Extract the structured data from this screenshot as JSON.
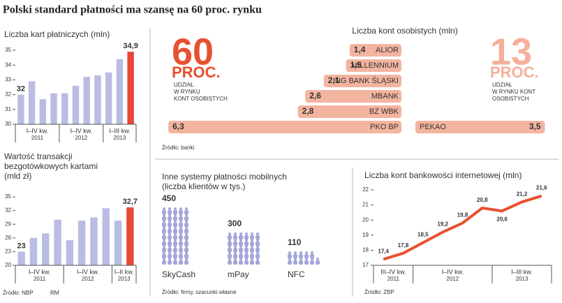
{
  "title": "Polski standard płatności ma szansę na 60 proc. rynku",
  "credit": "RM",
  "chart_data": [
    {
      "type": "bar",
      "title": [
        "Liczba kart płatniczych (mln)"
      ],
      "values": [
        32,
        32.9,
        31.7,
        32.1,
        32.1,
        32.6,
        33.2,
        33.3,
        33.5,
        34.4,
        34.9
      ],
      "value_labels": [
        "32",
        null,
        null,
        null,
        null,
        null,
        null,
        null,
        null,
        null,
        "34,9"
      ],
      "colors": [
        "#b9bde3",
        "#b9bde3",
        "#b9bde3",
        "#b9bde3",
        "#b9bde3",
        "#b9bde3",
        "#b9bde3",
        "#b9bde3",
        "#b9bde3",
        "#b9bde3",
        "#e8473a"
      ],
      "ylim": [
        30,
        35
      ],
      "yticks": [
        30,
        31,
        32,
        33,
        34,
        35
      ],
      "groups": [
        {
          "label": "I–IV kw.",
          "year": "2011"
        },
        {
          "label": "I–IV kw.",
          "year": "2012"
        },
        {
          "label": "I–III kw.",
          "year": "2013"
        }
      ],
      "source": "Źródło: NBP"
    },
    {
      "type": "bar",
      "title": [
        "Wartość transakcji",
        "bezgotówkowych kartami",
        "(mld zł)"
      ],
      "values": [
        23,
        26,
        27,
        30,
        25.5,
        29.8,
        30.5,
        32.5,
        29.8,
        32.7
      ],
      "value_labels": [
        "23",
        null,
        null,
        null,
        null,
        null,
        null,
        null,
        null,
        "32,7"
      ],
      "colors": [
        "#b9bde3",
        "#b9bde3",
        "#b9bde3",
        "#b9bde3",
        "#b9bde3",
        "#b9bde3",
        "#b9bde3",
        "#b9bde3",
        "#b9bde3",
        "#e8473a"
      ],
      "ylim": [
        20,
        35
      ],
      "yticks": [
        20,
        23,
        26,
        29,
        32,
        35
      ],
      "groups": [
        {
          "label": "I–IV kw.",
          "year": "2011"
        },
        {
          "label": "I–IV kw.",
          "year": "2012"
        },
        {
          "label": "I–II kw.",
          "year": "2013"
        }
      ]
    },
    {
      "type": "hbar",
      "title": [
        "Liczba kont osobistych (mln)"
      ],
      "categories": [
        "ALIOR",
        "MILLENNIUM",
        "ING BANK ŚLĄSKI",
        "MBANK",
        "BZ WBK",
        "PKO BP",
        "PEKAO"
      ],
      "values": [
        1.4,
        1.5,
        2.1,
        2.6,
        2.8,
        6.3,
        3.5
      ],
      "value_labels": [
        "1,4",
        "1,5",
        "2,1",
        "2,6",
        "2,8",
        "6,3",
        "3,5"
      ],
      "color": "#f3b4a0",
      "annotations": {
        "left": {
          "number": "60",
          "unit": "PROC.",
          "caption": [
            "UDZIAŁ",
            "W RYNKU",
            "KONT OSOBISTYCH"
          ]
        },
        "right": {
          "number": "13",
          "unit": "PROC.",
          "caption": [
            "UDZIAŁ",
            "W RYNKU KONT",
            "OSOBISTYCH"
          ]
        }
      },
      "source": "Źródło: banki"
    },
    {
      "type": "pictogram",
      "title": [
        "Inne systemy płatności mobilnych",
        "(liczba klientów w tys.)"
      ],
      "categories": [
        "SkyCash",
        "mPay",
        "NFC"
      ],
      "values": [
        450,
        300,
        110
      ],
      "color": "#a3a6d8",
      "source": "Źródło: firmy, szacunki własne"
    },
    {
      "type": "line",
      "title": [
        "Liczba kont bankowości internetowej (mln)"
      ],
      "values": [
        17.4,
        17.8,
        18.5,
        19.2,
        19.8,
        20.8,
        20.6,
        21.2,
        21.6
      ],
      "value_labels": [
        "17,4",
        "17,8",
        "18,5",
        "19,2",
        "19,8",
        "20,8",
        "20,6",
        "21,2",
        "21,6"
      ],
      "color": "#e8502f",
      "ylim": [
        17,
        22
      ],
      "yticks": [
        17,
        18,
        19,
        20,
        21,
        22
      ],
      "groups": [
        {
          "label": "III–IV kw.",
          "year": "2011"
        },
        {
          "label": "I–IV kw.",
          "year": "2012"
        },
        {
          "label": "I–III kw.",
          "year": "2013"
        }
      ],
      "source": "Źródło: ZBP"
    }
  ]
}
